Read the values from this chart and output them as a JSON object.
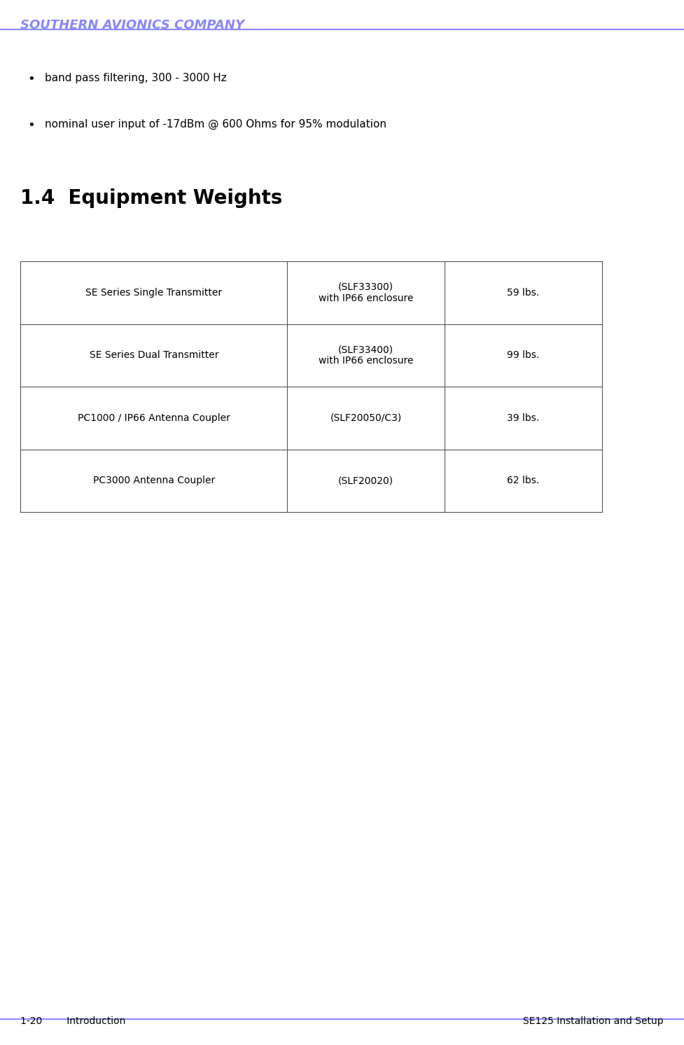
{
  "header_text": "SOUTHERN AVIONICS COMPANY",
  "header_color": "#8888ff",
  "header_font_size": 13,
  "bullet_items": [
    "band pass filtering, 300 - 3000 Hz",
    "nominal user input of -17dBm @ 600 Ohms for 95% modulation"
  ],
  "bullet_font_size": 11,
  "section_title": "1.4  Equipment Weights",
  "section_title_font_size": 20,
  "table_rows": [
    [
      "SE Series Single Transmitter",
      "(SLF33300)\nwith IP66 enclosure",
      "59 lbs."
    ],
    [
      "SE Series Dual Transmitter",
      "(SLF33400)\nwith IP66 enclosure",
      "99 lbs."
    ],
    [
      "PC1000 / IP66 Antenna Coupler",
      "(SLF20050/C3)",
      "39 lbs."
    ],
    [
      "PC3000 Antenna Coupler",
      "(SLF20020)",
      "62 lbs."
    ]
  ],
  "table_font_size": 10,
  "footer_left": "1-20        Introduction",
  "footer_right": "SE125 Installation and Setup",
  "footer_font_size": 10,
  "line_color": "#8888ff",
  "bg_color": "#ffffff",
  "text_color": "#000000"
}
